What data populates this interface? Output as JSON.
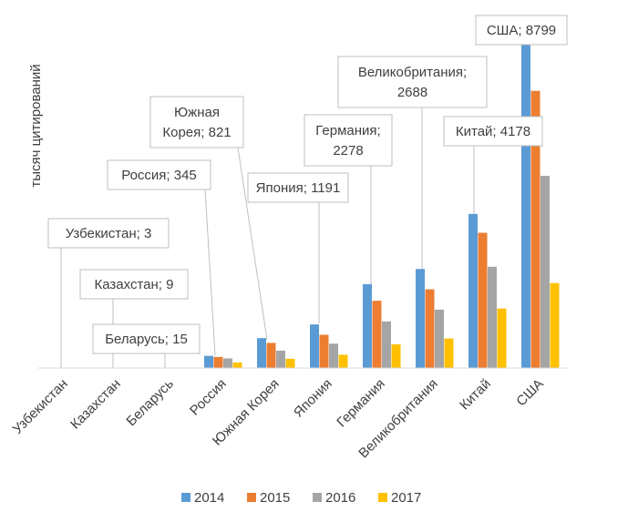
{
  "chart_data": {
    "type": "bar",
    "ylabel": "тысяч цитирований",
    "categories": [
      "Узбекистан",
      "Казахстан",
      "Беларусь",
      "Россия",
      "Южная Корея",
      "Япония",
      "Германия",
      "Великобритания",
      "Китай",
      "США"
    ],
    "series": [
      {
        "name": "2014",
        "color": "#5b9bd5",
        "values": [
          0.3,
          0.8,
          1.4,
          330,
          810,
          1180,
          2270,
          2680,
          4170,
          8800
        ]
      },
      {
        "name": "2015",
        "color": "#ed7d31",
        "values": [
          0.3,
          0.8,
          1.4,
          300,
          680,
          900,
          1820,
          2130,
          3660,
          7500
        ]
      },
      {
        "name": "2016",
        "color": "#a5a5a5",
        "values": [
          0.3,
          0.8,
          1.4,
          260,
          470,
          660,
          1260,
          1580,
          2740,
          5200
        ]
      },
      {
        "name": "2017",
        "color": "#ffc000",
        "values": [
          0.3,
          0.8,
          1.4,
          150,
          250,
          360,
          640,
          800,
          1610,
          2300
        ]
      }
    ],
    "ylim": [
      0,
      8800
    ],
    "grid": false,
    "legend_position": "bottom",
    "data_labels": [
      {
        "lines": [
          "Узбекистан; 3"
        ]
      },
      {
        "lines": [
          "Казахстан; 9"
        ]
      },
      {
        "lines": [
          "Беларусь; 15"
        ]
      },
      {
        "lines": [
          "Россия; 345"
        ]
      },
      {
        "lines": [
          "Южная",
          "Корея; 821"
        ]
      },
      {
        "lines": [
          "Япония; 1191"
        ]
      },
      {
        "lines": [
          "Германия;",
          "2278"
        ]
      },
      {
        "lines": [
          "Великобритания;",
          "2688"
        ]
      },
      {
        "lines": [
          "Китай; 4178"
        ]
      },
      {
        "lines": [
          "США; 8799"
        ]
      }
    ]
  }
}
